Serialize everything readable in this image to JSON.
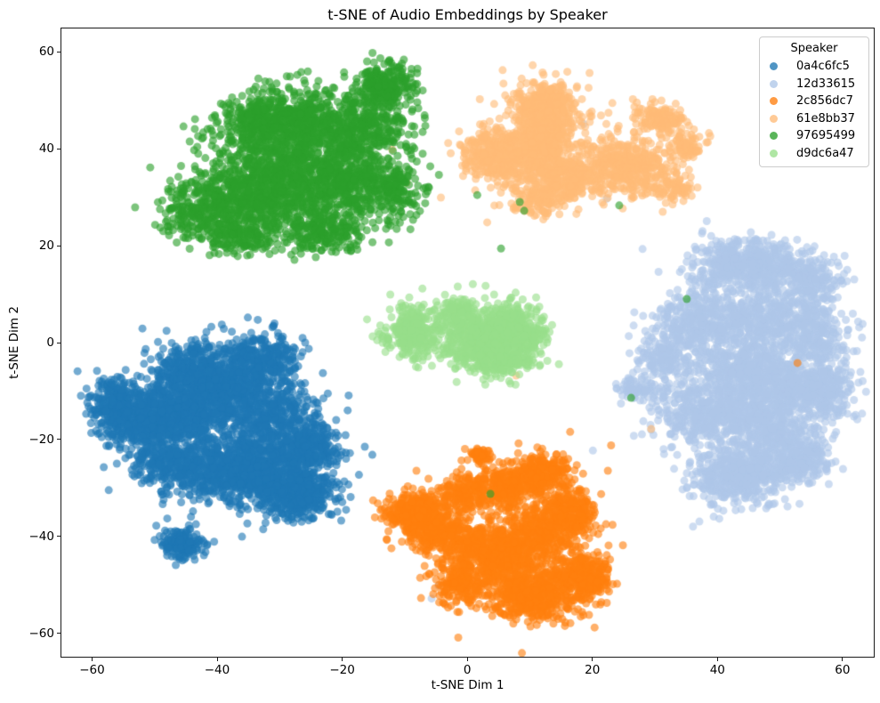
{
  "figure": {
    "title": "t-SNE of Audio Embeddings by Speaker",
    "xlabel": "t-SNE Dim 1",
    "ylabel": "t-SNE Dim 2"
  },
  "legend": {
    "title": "Speaker",
    "position": "upper right"
  },
  "colors": {
    "background": "#ffffff",
    "axis": "#1a1a1a",
    "legend_border": "#cccccc"
  },
  "chart_data": {
    "type": "scatter",
    "title": "t-SNE of Audio Embeddings by Speaker",
    "xlabel": "t-SNE Dim 1",
    "ylabel": "t-SNE Dim 2",
    "xlim": [
      -64.9,
      65.0
    ],
    "ylim": [
      -64.8,
      64.8
    ],
    "xticks": {
      "values": [
        -60,
        -40,
        -20,
        0,
        20,
        40,
        60
      ],
      "labels": [
        "−60",
        "−40",
        "−20",
        "0",
        "20",
        "40",
        "60"
      ]
    },
    "yticks": {
      "values": [
        -60,
        -40,
        -20,
        0,
        20,
        40,
        60
      ],
      "labels": [
        "−60",
        "−40",
        "−20",
        "0",
        "20",
        "40",
        "60"
      ]
    },
    "grid": false,
    "legend_position": "upper right",
    "marker": {
      "radius": 4.5,
      "alpha": 0.62
    },
    "seed": 42,
    "clusters_format": [
      "center_x",
      "center_y",
      "sigma_x",
      "sigma_y",
      "n_points"
    ],
    "series": [
      {
        "name": "0a4c6fc5",
        "color": "#1f77b4",
        "clusters": [
          [
            -46,
            -14,
            4,
            3.5,
            600
          ],
          [
            -53,
            -16,
            3,
            3,
            350
          ],
          [
            -38,
            -9,
            3.5,
            3.5,
            400
          ],
          [
            -33,
            -3,
            3,
            2.5,
            280
          ],
          [
            -44,
            -5,
            3,
            2.5,
            250
          ],
          [
            -31,
            -15,
            3.5,
            3.5,
            350
          ],
          [
            -33,
            -26,
            4,
            3.5,
            600
          ],
          [
            -27,
            -31,
            3,
            2.8,
            450
          ],
          [
            -40,
            -26,
            3.5,
            3,
            350
          ],
          [
            -25,
            -22,
            2.5,
            2.5,
            250
          ],
          [
            -48,
            -25,
            3,
            2.5,
            250
          ],
          [
            -56,
            -12,
            2.2,
            2.5,
            180
          ],
          [
            -45.5,
            -41.5,
            1.8,
            1.6,
            170
          ],
          [
            -40,
            -17,
            8.5,
            8,
            280
          ]
        ],
        "outliers": [
          [
            -59,
            -11.5
          ],
          [
            -58,
            -16
          ],
          [
            -23,
            -11.5
          ],
          [
            -22.5,
            -27.5
          ],
          [
            -33.5,
            4.7
          ],
          [
            -31,
            3.5
          ]
        ]
      },
      {
        "name": "12d33615",
        "color": "#aec7e8",
        "clusters": [
          [
            45,
            16,
            4.5,
            2.8,
            550
          ],
          [
            55,
            13,
            2.5,
            2.5,
            200
          ],
          [
            37,
            4,
            3,
            3.5,
            350
          ],
          [
            46,
            5,
            3.5,
            3.5,
            350
          ],
          [
            55,
            2,
            3,
            3.5,
            300
          ],
          [
            44,
            -6,
            4,
            3,
            400
          ],
          [
            53,
            -9,
            3.5,
            3,
            350
          ],
          [
            58,
            -10,
            1.8,
            3,
            150
          ],
          [
            38,
            -15,
            3.5,
            3,
            400
          ],
          [
            48,
            -17,
            3.5,
            3,
            350
          ],
          [
            44,
            -27,
            4,
            3,
            550
          ],
          [
            53,
            -24,
            2.5,
            2.5,
            250
          ],
          [
            31,
            -3,
            2,
            3.5,
            180
          ],
          [
            27,
            -9.5,
            1.2,
            1.2,
            70
          ],
          [
            45,
            -6,
            8.5,
            11,
            240
          ]
        ],
        "outliers": [
          [
            22.3,
            29.7
          ],
          [
            18.6,
            45.1
          ],
          [
            -5.7,
            -52.8
          ],
          [
            -4.6,
            -50.1
          ],
          [
            39,
            22
          ]
        ]
      },
      {
        "name": "2c856dc7",
        "color": "#ff7f0e",
        "clusters": [
          [
            -8,
            -35,
            2.3,
            2,
            450
          ],
          [
            -4.5,
            -39,
            2,
            2,
            250
          ],
          [
            0,
            -31,
            2,
            2,
            160
          ],
          [
            2,
            -23.5,
            0.9,
            0.9,
            50
          ],
          [
            7,
            -29,
            2.5,
            2.2,
            280
          ],
          [
            12.5,
            -26.5,
            2,
            1.8,
            200
          ],
          [
            5.5,
            -44,
            3,
            3,
            400
          ],
          [
            12,
            -39,
            3,
            3.5,
            380
          ],
          [
            17,
            -35,
            2,
            2.5,
            200
          ],
          [
            10,
            -52,
            3.2,
            2.6,
            500
          ],
          [
            18.5,
            -48.5,
            2.3,
            2.3,
            350
          ],
          [
            -1,
            -50,
            2,
            2.2,
            180
          ],
          [
            1,
            -42,
            2,
            2.5,
            180
          ],
          [
            6,
            -40,
            7.5,
            7.5,
            200
          ]
        ],
        "outliers": [
          [
            52.8,
            -4.2
          ],
          [
            23,
            -21.2
          ],
          [
            -7.4,
            -52.7
          ]
        ]
      },
      {
        "name": "61e8bb37",
        "color": "#ffbb78",
        "clusters": [
          [
            12,
            44,
            2.2,
            4.5,
            550
          ],
          [
            8,
            38,
            2.5,
            3,
            250
          ],
          [
            3.5,
            39,
            2.2,
            2.8,
            220
          ],
          [
            16,
            34,
            2.5,
            2.5,
            250
          ],
          [
            12.5,
            50,
            2.5,
            1.8,
            180
          ],
          [
            25,
            36,
            3.5,
            2.8,
            450
          ],
          [
            31,
            46.5,
            2,
            1.5,
            140
          ],
          [
            35,
            41,
            1.5,
            1.8,
            90
          ],
          [
            33,
            32,
            1.5,
            1.5,
            80
          ],
          [
            11,
            29,
            2,
            1.5,
            100
          ],
          [
            15,
            40,
            7,
            5.5,
            150
          ]
        ],
        "outliers": [
          [
            29.4,
            -17.8
          ],
          [
            7.8,
            -6.8
          ],
          [
            -12,
            39.8
          ],
          [
            -9.7,
            33
          ]
        ]
      },
      {
        "name": "97695499",
        "color": "#2ca02c",
        "clusters": [
          [
            -43,
            27,
            3,
            3,
            250
          ],
          [
            -35,
            31,
            4,
            4,
            450
          ],
          [
            -27,
            34,
            5,
            5,
            600
          ],
          [
            -33,
            45,
            3.5,
            3,
            300
          ],
          [
            -27,
            46,
            4,
            3.5,
            400
          ],
          [
            -17,
            44,
            4,
            4,
            450
          ],
          [
            -13,
            53,
            2.5,
            2.5,
            250
          ],
          [
            -19,
            33,
            3,
            3,
            300
          ],
          [
            -12,
            31,
            2.5,
            3,
            200
          ],
          [
            -23,
            23,
            3,
            2.2,
            200
          ],
          [
            -36,
            21.5,
            2.5,
            1.8,
            150
          ],
          [
            -30,
            35,
            8.5,
            7.5,
            230
          ]
        ],
        "outliers": [
          [
            8.4,
            29
          ],
          [
            9.1,
            27.2
          ],
          [
            24.3,
            28.3
          ],
          [
            5.4,
            19.4
          ],
          [
            35.1,
            9
          ],
          [
            26.2,
            -11.4
          ],
          [
            3.7,
            -31.2
          ]
        ]
      },
      {
        "name": "d9dc6a47",
        "color": "#98df8a",
        "clusters": [
          [
            -8.5,
            2.5,
            2.3,
            2.6,
            350
          ],
          [
            3,
            1,
            3,
            3,
            550
          ],
          [
            7.5,
            3.5,
            2,
            2.3,
            220
          ],
          [
            5.5,
            -4,
            2.3,
            1.5,
            180
          ],
          [
            10.5,
            0.5,
            1.2,
            2,
            90
          ],
          [
            -1.5,
            6.5,
            1.5,
            1.5,
            80
          ],
          [
            0,
            2,
            5,
            3.5,
            110
          ]
        ],
        "outliers": []
      }
    ]
  }
}
